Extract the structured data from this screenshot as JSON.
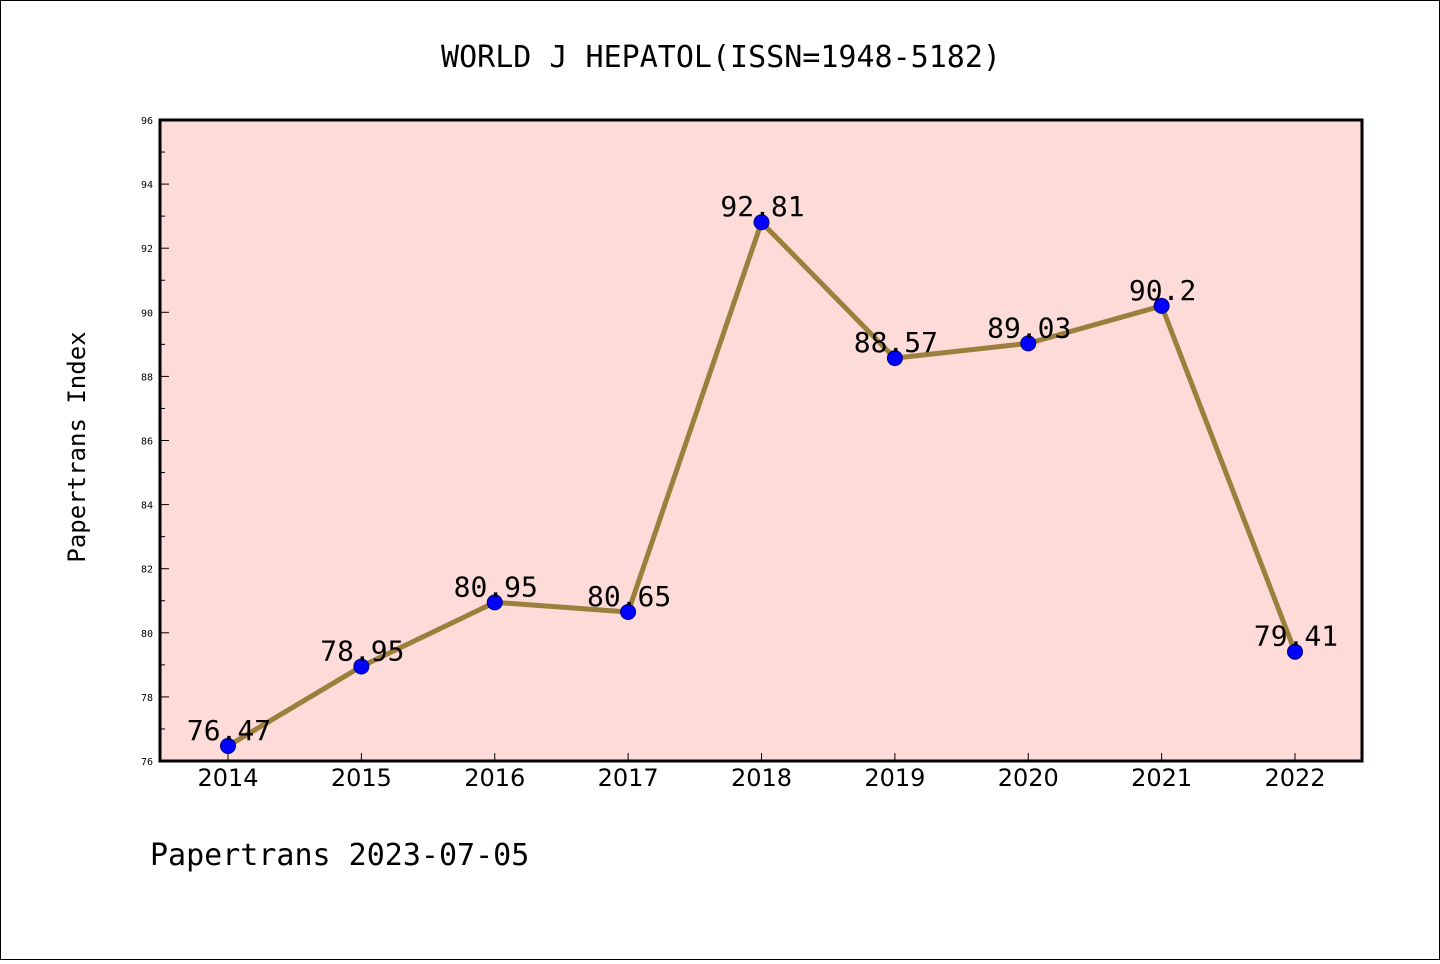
{
  "chart_data": {
    "type": "line",
    "title": "WORLD J HEPATOL(ISSN=1948-5182)",
    "xlabel": "",
    "ylabel": "Papertrans Index",
    "categories": [
      "2014",
      "2015",
      "2016",
      "2017",
      "2018",
      "2019",
      "2020",
      "2021",
      "2022"
    ],
    "series": [
      {
        "values": [
          76.47,
          78.95,
          80.95,
          80.65,
          92.81,
          88.57,
          89.03,
          90.2,
          79.41
        ]
      }
    ],
    "data_labels": [
      "76.47",
      "78.95",
      "80.95",
      "80.65",
      "92.81",
      "88.57",
      "89.03",
      "90.2",
      "79.41"
    ],
    "ylim": [
      76,
      96
    ],
    "yticks": [
      "76",
      "78",
      "80",
      "82",
      "84",
      "86",
      "88",
      "90",
      "92",
      "94",
      "96"
    ],
    "grid": false,
    "colors": {
      "plot_background": "#fddbd8",
      "line": "#9b7f3c",
      "marker": "#0000ff",
      "axis": "#000000"
    }
  },
  "footer": "Papertrans 2023-07-05"
}
